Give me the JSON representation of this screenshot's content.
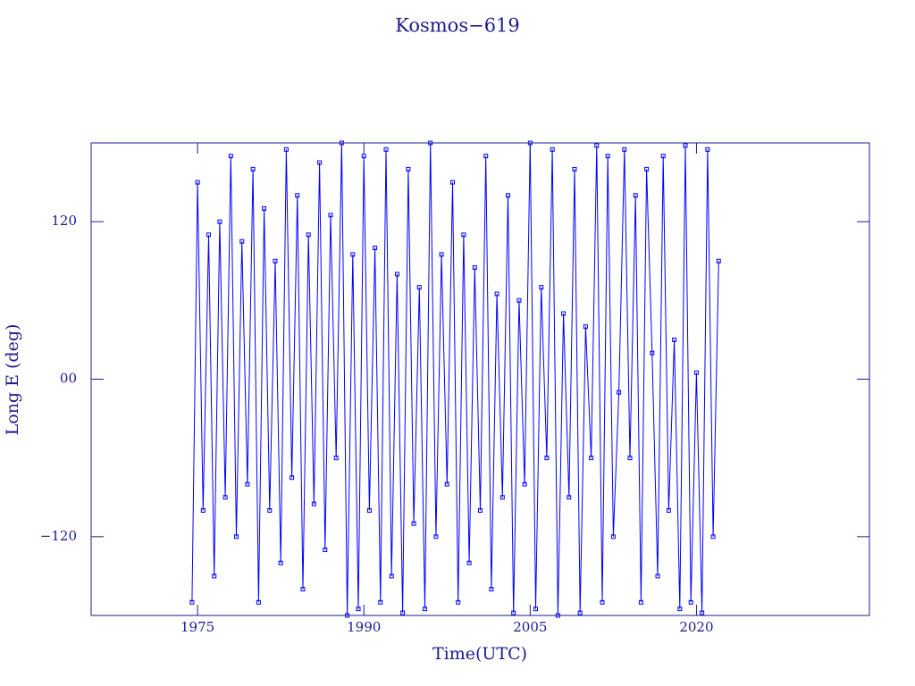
{
  "chart_data": {
    "type": "line",
    "title": "Kosmos−619",
    "x_label": "Time(UTC)",
    "y_label": "Long E (deg)",
    "x": [
      1974.5,
      1975,
      1975.5,
      1976,
      1976.5,
      1977,
      1977.5,
      1978,
      1978.5,
      1979,
      1979.5,
      1980,
      1980.5,
      1981,
      1981.5,
      1982,
      1982.5,
      1983,
      1983.5,
      1984,
      1984.5,
      1985,
      1985.5,
      1986,
      1986.5,
      1987,
      1987.5,
      1988,
      1988.5,
      1989,
      1989.5,
      1990,
      1990.5,
      1991,
      1991.5,
      1992,
      1992.5,
      1993,
      1993.5,
      1994,
      1994.5,
      1995,
      1995.5,
      1996,
      1996.5,
      1997,
      1997.5,
      1998,
      1998.5,
      1999,
      1999.5,
      2000,
      2000.5,
      2001,
      2001.5,
      2002,
      2002.5,
      2003,
      2003.5,
      2004,
      2004.5,
      2005,
      2005.5,
      2006,
      2006.5,
      2007,
      2007.5,
      2008,
      2008.5,
      2009,
      2009.5,
      2010,
      2010.5,
      2011,
      2011.5,
      2012,
      2012.5,
      2013,
      2013.5,
      2014,
      2014.5,
      2015,
      2015.5,
      2016,
      2016.5,
      2017,
      2017.5,
      2018,
      2018.5,
      2019,
      2019.5,
      2020,
      2020.5,
      2021,
      2021.5,
      2022
    ],
    "series": [
      {
        "name": "Kosmos-619",
        "color": "#0000ff",
        "values": [
          -170,
          150,
          -100,
          110,
          -150,
          120,
          -90,
          170,
          -120,
          105,
          -80,
          160,
          -170,
          130,
          -100,
          90,
          -140,
          175,
          -75,
          140,
          -160,
          110,
          -95,
          165,
          -130,
          125,
          -60,
          180,
          -180,
          95,
          -175,
          170,
          -100,
          100,
          -170,
          175,
          -150,
          80,
          -178,
          160,
          -110,
          70,
          -175,
          180,
          -120,
          95,
          -80,
          150,
          -170,
          110,
          -140,
          85,
          -100,
          170,
          -160,
          65,
          -90,
          140,
          -178,
          60,
          -80,
          180,
          -175,
          70,
          -60,
          175,
          -180,
          50,
          -90,
          160,
          -178,
          40,
          -60,
          178,
          -170,
          170,
          -120,
          -10,
          175,
          -60,
          140,
          -170,
          160,
          20,
          -150,
          170,
          -100,
          30,
          -175,
          178,
          -170,
          5,
          -178,
          175,
          -120,
          90
        ]
      }
    ],
    "xlim": [
      1965.4,
      2035.6
    ],
    "ylim": [
      -180,
      180
    ],
    "xticks": [
      1975,
      1990,
      2005,
      2020
    ],
    "yticks": [
      {
        "value": -120,
        "label": "−120"
      },
      {
        "value": 0,
        "label": "00"
      },
      120
    ]
  }
}
